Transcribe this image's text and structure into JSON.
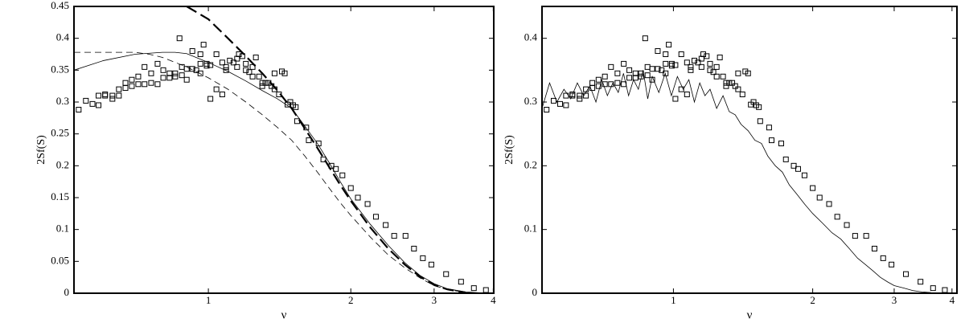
{
  "chart_data": [
    {
      "type": "line",
      "x_label": "ν",
      "y_label": "2Sf(S)",
      "xlog": true,
      "xlim": [
        0.52,
        4.01
      ],
      "xticks": [
        1,
        2,
        3,
        4
      ],
      "ylim": [
        0,
        0.45
      ],
      "yticks": [
        0,
        0.05,
        0.1,
        0.15,
        0.2,
        0.25,
        0.3,
        0.35,
        0.4,
        0.45
      ],
      "series": [
        {
          "style": "markers",
          "color": "#000000",
          "x": [
            0.532,
            0.551,
            0.569,
            0.586,
            0.586,
            0.605,
            0.605,
            0.627,
            0.627,
            0.647,
            0.647,
            0.668,
            0.668,
            0.689,
            0.689,
            0.711,
            0.711,
            0.733,
            0.733,
            0.757,
            0.757,
            0.781,
            0.781,
            0.803,
            0.803,
            0.828,
            0.828,
            0.851,
            0.851,
            0.869,
            0.879,
            0.879,
            0.9,
            0.9,
            0.925,
            0.925,
            0.943,
            0.962,
            0.962,
            0.962,
            0.977,
            0.992,
            0.992,
            1.01,
            1.01,
            1.04,
            1.04,
            1.07,
            1.07,
            1.09,
            1.09,
            1.11,
            1.13,
            1.15,
            1.15,
            1.16,
            1.18,
            1.2,
            1.2,
            1.22,
            1.24,
            1.24,
            1.26,
            1.28,
            1.3,
            1.3,
            1.32,
            1.34,
            1.36,
            1.38,
            1.38,
            1.41,
            1.43,
            1.45,
            1.47,
            1.49,
            1.51,
            1.53,
            1.54,
            1.61,
            1.63,
            1.71,
            1.75,
            1.82,
            1.86,
            1.92,
            2.0,
            2.07,
            2.17,
            2.26,
            2.37,
            2.47,
            2.61,
            2.72,
            2.84,
            2.96,
            3.18,
            3.42,
            3.64,
            3.86
          ],
          "values": [
            0.288,
            0.302,
            0.297,
            0.31,
            0.295,
            0.312,
            0.31,
            0.305,
            0.31,
            0.32,
            0.31,
            0.33,
            0.322,
            0.335,
            0.325,
            0.34,
            0.328,
            0.355,
            0.328,
            0.345,
            0.33,
            0.36,
            0.328,
            0.35,
            0.338,
            0.338,
            0.345,
            0.345,
            0.34,
            0.4,
            0.355,
            0.342,
            0.352,
            0.335,
            0.38,
            0.352,
            0.35,
            0.375,
            0.345,
            0.36,
            0.39,
            0.357,
            0.36,
            0.305,
            0.358,
            0.375,
            0.32,
            0.312,
            0.362,
            0.355,
            0.35,
            0.365,
            0.362,
            0.368,
            0.355,
            0.375,
            0.372,
            0.36,
            0.35,
            0.347,
            0.355,
            0.34,
            0.37,
            0.34,
            0.33,
            0.325,
            0.33,
            0.33,
            0.325,
            0.345,
            0.32,
            0.312,
            0.348,
            0.345,
            0.296,
            0.3,
            0.295,
            0.292,
            0.27,
            0.26,
            0.24,
            0.235,
            0.21,
            0.2,
            0.195,
            0.185,
            0.165,
            0.15,
            0.14,
            0.12,
            0.107,
            0.09,
            0.09,
            0.07,
            0.055,
            0.045,
            0.03,
            0.018,
            0.008,
            0.005
          ]
        },
        {
          "style": "solid",
          "color": "#000000",
          "x": [
            0.52,
            0.6,
            0.7,
            0.8,
            0.85,
            0.9,
            1.0,
            1.1,
            1.2,
            1.3,
            1.4,
            1.5,
            1.6,
            1.7,
            1.8,
            1.9,
            2.0,
            2.2,
            2.4,
            2.6,
            2.8,
            3.0,
            3.2,
            3.5,
            3.8
          ],
          "values": [
            0.35,
            0.365,
            0.375,
            0.378,
            0.378,
            0.376,
            0.362,
            0.348,
            0.333,
            0.318,
            0.305,
            0.29,
            0.262,
            0.235,
            0.205,
            0.175,
            0.148,
            0.108,
            0.075,
            0.048,
            0.028,
            0.015,
            0.007,
            0.002,
            0.0005
          ]
        },
        {
          "style": "dashed",
          "color": "#000000",
          "x": [
            0.52,
            0.6,
            0.7,
            0.75,
            0.8,
            0.9,
            1.0,
            1.1,
            1.2,
            1.3,
            1.4,
            1.5,
            1.6,
            1.7,
            1.8,
            1.9,
            2.0,
            2.2,
            2.4,
            2.6,
            2.8,
            3.0,
            3.2,
            3.5
          ],
          "values": [
            0.378,
            0.378,
            0.378,
            0.375,
            0.37,
            0.355,
            0.338,
            0.32,
            0.3,
            0.28,
            0.26,
            0.24,
            0.215,
            0.19,
            0.165,
            0.142,
            0.122,
            0.088,
            0.06,
            0.04,
            0.024,
            0.012,
            0.006,
            0.001
          ]
        },
        {
          "style": "dashed-thick",
          "color": "#000000",
          "x": [
            0.9,
            1.0,
            1.1,
            1.2,
            1.3,
            1.4,
            1.5,
            1.6,
            1.7,
            1.8,
            1.9,
            2.0,
            2.2,
            2.4,
            2.6,
            2.8,
            3.0,
            3.2,
            3.5
          ],
          "values": [
            0.45,
            0.43,
            0.4,
            0.372,
            0.345,
            0.318,
            0.29,
            0.258,
            0.228,
            0.198,
            0.17,
            0.145,
            0.103,
            0.07,
            0.045,
            0.026,
            0.013,
            0.006,
            0.001
          ]
        }
      ]
    },
    {
      "type": "line",
      "x_label": "ν",
      "y_label": "2Sf(S)",
      "xlog": true,
      "xlim": [
        0.52,
        4.1
      ],
      "xticks": [
        1,
        2,
        3,
        4
      ],
      "ylim": [
        0,
        0.45
      ],
      "yticks": [
        0,
        0.1,
        0.2,
        0.3,
        0.4
      ],
      "series": [
        {
          "style": "markers",
          "color": "#000000",
          "x": [
            0.532,
            0.551,
            0.569,
            0.586,
            0.586,
            0.605,
            0.605,
            0.627,
            0.627,
            0.647,
            0.647,
            0.668,
            0.668,
            0.689,
            0.689,
            0.711,
            0.711,
            0.733,
            0.733,
            0.757,
            0.757,
            0.781,
            0.781,
            0.803,
            0.803,
            0.828,
            0.828,
            0.851,
            0.851,
            0.869,
            0.879,
            0.879,
            0.9,
            0.9,
            0.925,
            0.925,
            0.943,
            0.962,
            0.962,
            0.962,
            0.977,
            0.992,
            0.992,
            1.01,
            1.01,
            1.04,
            1.04,
            1.07,
            1.07,
            1.09,
            1.09,
            1.11,
            1.13,
            1.15,
            1.15,
            1.16,
            1.18,
            1.2,
            1.2,
            1.22,
            1.24,
            1.24,
            1.26,
            1.28,
            1.3,
            1.3,
            1.32,
            1.34,
            1.36,
            1.38,
            1.38,
            1.41,
            1.43,
            1.45,
            1.47,
            1.49,
            1.51,
            1.53,
            1.54,
            1.61,
            1.63,
            1.71,
            1.75,
            1.82,
            1.86,
            1.92,
            2.0,
            2.07,
            2.17,
            2.26,
            2.37,
            2.47,
            2.61,
            2.72,
            2.84,
            2.96,
            3.18,
            3.42,
            3.64,
            3.86
          ],
          "values": [
            0.288,
            0.302,
            0.297,
            0.31,
            0.295,
            0.312,
            0.31,
            0.305,
            0.31,
            0.32,
            0.31,
            0.33,
            0.322,
            0.335,
            0.325,
            0.34,
            0.328,
            0.355,
            0.328,
            0.345,
            0.33,
            0.36,
            0.328,
            0.35,
            0.338,
            0.338,
            0.345,
            0.345,
            0.34,
            0.4,
            0.355,
            0.342,
            0.352,
            0.335,
            0.38,
            0.352,
            0.35,
            0.375,
            0.345,
            0.36,
            0.39,
            0.357,
            0.36,
            0.305,
            0.358,
            0.375,
            0.32,
            0.312,
            0.362,
            0.355,
            0.35,
            0.365,
            0.362,
            0.368,
            0.355,
            0.375,
            0.372,
            0.36,
            0.35,
            0.347,
            0.355,
            0.34,
            0.37,
            0.34,
            0.33,
            0.325,
            0.33,
            0.33,
            0.325,
            0.345,
            0.32,
            0.312,
            0.348,
            0.345,
            0.296,
            0.3,
            0.295,
            0.292,
            0.27,
            0.26,
            0.24,
            0.235,
            0.21,
            0.2,
            0.195,
            0.185,
            0.165,
            0.15,
            0.14,
            0.12,
            0.107,
            0.09,
            0.09,
            0.07,
            0.055,
            0.045,
            0.03,
            0.018,
            0.008,
            0.005
          ]
        },
        {
          "style": "solid",
          "color": "#000000",
          "x": [
            0.52,
            0.54,
            0.56,
            0.58,
            0.6,
            0.62,
            0.64,
            0.66,
            0.68,
            0.7,
            0.72,
            0.74,
            0.76,
            0.78,
            0.8,
            0.82,
            0.84,
            0.86,
            0.88,
            0.9,
            0.93,
            0.96,
            0.99,
            1.02,
            1.05,
            1.08,
            1.11,
            1.14,
            1.17,
            1.2,
            1.24,
            1.28,
            1.32,
            1.36,
            1.4,
            1.45,
            1.5,
            1.55,
            1.6,
            1.66,
            1.72,
            1.78,
            1.85,
            1.92,
            2.0,
            2.1,
            2.2,
            2.3,
            2.4,
            2.5,
            2.6,
            2.7,
            2.8,
            2.9,
            3.0,
            3.15,
            3.3,
            3.45,
            3.6
          ],
          "values": [
            0.29,
            0.33,
            0.3,
            0.32,
            0.305,
            0.33,
            0.31,
            0.325,
            0.3,
            0.335,
            0.31,
            0.33,
            0.315,
            0.345,
            0.31,
            0.335,
            0.32,
            0.35,
            0.305,
            0.34,
            0.315,
            0.345,
            0.31,
            0.34,
            0.32,
            0.335,
            0.3,
            0.33,
            0.31,
            0.32,
            0.29,
            0.31,
            0.285,
            0.28,
            0.265,
            0.255,
            0.24,
            0.235,
            0.215,
            0.2,
            0.19,
            0.17,
            0.155,
            0.14,
            0.125,
            0.11,
            0.095,
            0.085,
            0.07,
            0.055,
            0.045,
            0.035,
            0.025,
            0.018,
            0.012,
            0.008,
            0.004,
            0.002,
            0.001
          ]
        }
      ]
    }
  ]
}
